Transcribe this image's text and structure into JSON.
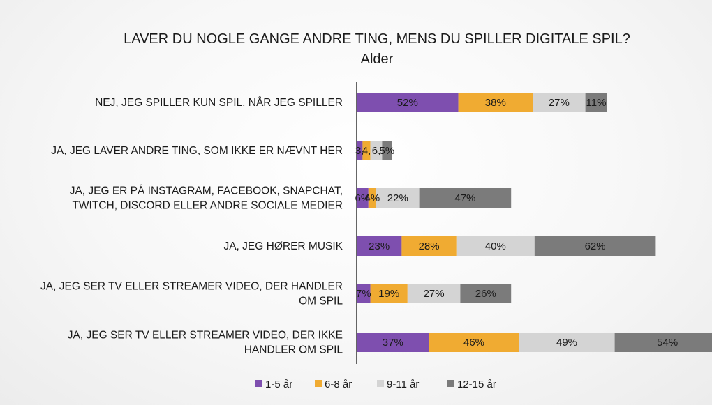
{
  "chart_data": {
    "type": "bar",
    "orientation": "horizontal",
    "stacked": true,
    "title": "LAVER DU NOGLE GANGE ANDRE TING, MENS DU SPILLER DIGITALE SPIL?",
    "subtitle": "Alder",
    "categories": [
      [
        "NEJ, JEG SPILLER KUN SPIL, NÅR JEG SPILLER"
      ],
      [
        "JA, JEG LAVER ANDRE TING, SOM IKKE ER NÆVNT HER"
      ],
      [
        "JA, JEG ER PÅ INSTAGRAM, FACEBOOK, SNAPCHAT,",
        "TWITCH, DISCORD ELLER ANDRE SOCIALE MEDIER"
      ],
      [
        "JA, JEG HØRER MUSIK"
      ],
      [
        "JA, JEG SER TV ELLER STREAMER VIDEO, DER HANDLER",
        "OM SPIL"
      ],
      [
        "JA, JEG SER TV ELLER STREAMER VIDEO, DER IKKE",
        "HANDLER OM SPIL"
      ]
    ],
    "series": [
      {
        "name": "1-5 år",
        "color": "#7e4faf",
        "values": [
          52,
          3,
          6,
          23,
          7,
          37
        ],
        "labels": [
          "52%",
          "3,",
          "6%",
          "23%",
          "7%",
          "37%"
        ]
      },
      {
        "name": "6-8 år",
        "color": "#f0ab32",
        "values": [
          38,
          4,
          4,
          28,
          19,
          46
        ],
        "labels": [
          "38%",
          "4,",
          "4%",
          "28%",
          "19%",
          "46%"
        ]
      },
      {
        "name": "9-11 år",
        "color": "#d4d4d4",
        "values": [
          27,
          6,
          22,
          40,
          27,
          49
        ],
        "labels": [
          "27%",
          "6,",
          "22%",
          "40%",
          "27%",
          "49%"
        ]
      },
      {
        "name": "12-15 år",
        "color": "#7b7b7b",
        "values": [
          11,
          5,
          47,
          62,
          26,
          54
        ],
        "labels": [
          "11%",
          "5%",
          "47%",
          "62%",
          "26%",
          "54%"
        ]
      }
    ],
    "legend_position": "bottom",
    "grid": false
  }
}
